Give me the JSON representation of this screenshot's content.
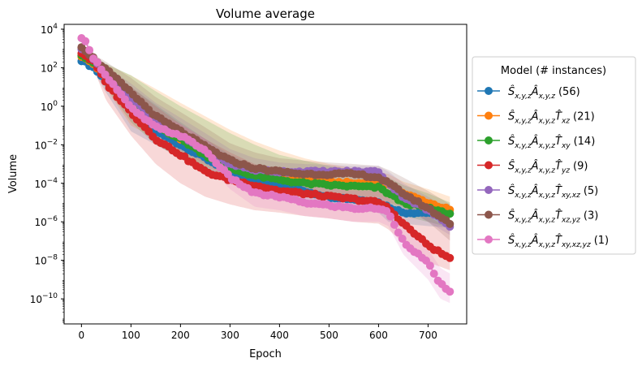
{
  "chart_data": {
    "type": "line",
    "title": "Volume average",
    "xlabel": "Epoch",
    "ylabel": "Volume",
    "yscale": "log",
    "xlim": [
      -35,
      778
    ],
    "ylim_log10": [
      -11.3,
      4.25
    ],
    "xticks": [
      0,
      100,
      200,
      300,
      400,
      500,
      600,
      700
    ],
    "xtick_labels": [
      "0",
      "100",
      "200",
      "300",
      "400",
      "500",
      "600",
      "700"
    ],
    "yticks_log10": [
      -10,
      -8,
      -6,
      -4,
      -2,
      0,
      2,
      4
    ],
    "ytick_labels": [
      {
        "base": "10",
        "exp": "−10"
      },
      {
        "base": "10",
        "exp": "−8"
      },
      {
        "base": "10",
        "exp": "−6"
      },
      {
        "base": "10",
        "exp": "−4"
      },
      {
        "base": "10",
        "exp": "−2"
      },
      {
        "base": "10",
        "exp": "0"
      },
      {
        "base": "10",
        "exp": "2"
      },
      {
        "base": "10",
        "exp": "4"
      }
    ],
    "grid": false,
    "legend_position": "right, outside",
    "legend": {
      "title": "Model (# instances)",
      "entries": [
        {
          "label": "Ŝx,y,zÂx,y,z (56)",
          "parts": [
            [
              "Ŝ",
              "x,y,z"
            ],
            [
              "Â",
              "x,y,z"
            ]
          ],
          "count": "(56)"
        },
        {
          "label": "Ŝx,y,zÂx,y,zT̂xz (21)",
          "parts": [
            [
              "Ŝ",
              "x,y,z"
            ],
            [
              "Â",
              "x,y,z"
            ],
            [
              "T̂",
              "xz"
            ]
          ],
          "count": "(21)"
        },
        {
          "label": "Ŝx,y,zÂx,y,zT̂xy (14)",
          "parts": [
            [
              "Ŝ",
              "x,y,z"
            ],
            [
              "Â",
              "x,y,z"
            ],
            [
              "T̂",
              "xy"
            ]
          ],
          "count": "(14)"
        },
        {
          "label": "Ŝx,y,zÂx,y,zT̂yz (9)",
          "parts": [
            [
              "Ŝ",
              "x,y,z"
            ],
            [
              "Â",
              "x,y,z"
            ],
            [
              "T̂",
              "yz"
            ]
          ],
          "count": "(9)"
        },
        {
          "label": "Ŝx,y,zÂx,y,zT̂xy,xz (5)",
          "parts": [
            [
              "Ŝ",
              "x,y,z"
            ],
            [
              "Â",
              "x,y,z"
            ],
            [
              "T̂",
              "xy,xz"
            ]
          ],
          "count": "(5)"
        },
        {
          "label": "Ŝx,y,zÂx,y,zT̂xz,yz (3)",
          "parts": [
            [
              "Ŝ",
              "x,y,z"
            ],
            [
              "Â",
              "x,y,z"
            ],
            [
              "T̂",
              "xz,yz"
            ]
          ],
          "count": "(3)"
        },
        {
          "label": "Ŝx,y,zÂx,y,zT̂xy,xz,yz (1)",
          "parts": [
            [
              "Ŝ",
              "x,y,z"
            ],
            [
              "Â",
              "x,y,z"
            ],
            [
              "T̂",
              "xy,xz,yz"
            ]
          ],
          "count": "(1)"
        }
      ]
    },
    "series": [
      {
        "name": "Ŝx,y,zÂx,y,z (56)",
        "color": "#1f77b4",
        "x": [
          0,
          25,
          50,
          100,
          150,
          200,
          250,
          300,
          350,
          400,
          450,
          500,
          550,
          600,
          620,
          650,
          700,
          745
        ],
        "y": [
          250,
          100,
          20,
          0.8,
          0.05,
          0.01,
          0.002,
          0.0004,
          0.00015,
          7e-05,
          4e-05,
          2e-05,
          1.5e-05,
          1e-05,
          6e-06,
          3e-06,
          3e-06,
          2.5e-06
        ],
        "band_upper": [
          300,
          150,
          60,
          10,
          1.2,
          0.15,
          0.02,
          0.003,
          0.0008,
          0.0003,
          0.00015,
          0.0001,
          6e-05,
          5e-05,
          3e-05,
          2e-05,
          1e-05,
          8e-06
        ],
        "band_lower": [
          200,
          60,
          5,
          0.05,
          0.01,
          0.002,
          0.0004,
          0.0001,
          4e-05,
          2e-05,
          1e-05,
          5e-06,
          4e-06,
          3e-06,
          1e-06,
          8e-07,
          6e-07,
          5e-07
        ]
      },
      {
        "name": "Ŝx,y,zÂx,y,zT̂xz (21)",
        "color": "#ff7f0e",
        "x": [
          0,
          25,
          50,
          100,
          150,
          200,
          250,
          300,
          350,
          400,
          450,
          500,
          550,
          600,
          620,
          650,
          700,
          745
        ],
        "y": [
          400,
          150,
          30,
          1,
          0.1,
          0.02,
          0.004,
          0.0008,
          0.0003,
          0.0002,
          0.00015,
          0.00012,
          0.0001,
          0.0001,
          8e-05,
          3e-05,
          1e-05,
          4e-06
        ],
        "band_upper": [
          500,
          300,
          150,
          40,
          8,
          1.5,
          0.3,
          0.06,
          0.015,
          0.005,
          0.002,
          0.001,
          0.0006,
          0.0004,
          0.0003,
          0.00012,
          5e-05,
          2e-05
        ],
        "band_lower": [
          300,
          80,
          8,
          0.1,
          0.02,
          0.004,
          0.0008,
          0.0002,
          8e-05,
          5e-05,
          4e-05,
          3e-05,
          2e-05,
          2e-05,
          1e-05,
          6e-06,
          3e-06,
          1e-06
        ]
      },
      {
        "name": "Ŝx,y,zÂx,y,zT̂xy (14)",
        "color": "#2ca02c",
        "x": [
          0,
          25,
          50,
          100,
          150,
          200,
          250,
          300,
          350,
          400,
          450,
          500,
          550,
          600,
          620,
          650,
          700,
          745
        ],
        "y": [
          500,
          180,
          40,
          1.5,
          0.1,
          0.02,
          0.003,
          0.0006,
          0.00025,
          0.00015,
          0.0001,
          8e-05,
          7e-05,
          6e-05,
          3e-05,
          1e-05,
          5e-06,
          2.5e-06
        ],
        "band_upper": [
          600,
          350,
          160,
          40,
          6,
          1,
          0.2,
          0.04,
          0.01,
          0.003,
          0.0015,
          0.0008,
          0.0005,
          0.0003,
          0.0002,
          8e-05,
          3e-05,
          1e-05
        ],
        "band_lower": [
          350,
          90,
          10,
          0.15,
          0.01,
          0.002,
          0.0004,
          0.0001,
          5e-05,
          3e-05,
          2e-05,
          2e-05,
          1e-05,
          1e-05,
          5e-06,
          2e-06,
          1e-06,
          5e-07
        ]
      },
      {
        "name": "Ŝx,y,zÂx,y,zT̂yz (9)",
        "color": "#d62728",
        "x": [
          0,
          25,
          50,
          100,
          150,
          200,
          250,
          300,
          350,
          400,
          450,
          500,
          550,
          600,
          620,
          650,
          700,
          745
        ],
        "y": [
          600,
          200,
          15,
          0.5,
          0.02,
          0.003,
          0.0004,
          0.00015,
          8e-05,
          4e-05,
          3e-05,
          2e-05,
          1.5e-05,
          1e-05,
          5e-06,
          8e-07,
          6e-08,
          1.2e-08
        ],
        "band_upper": [
          700,
          350,
          80,
          10,
          1,
          0.12,
          0.02,
          0.004,
          0.001,
          0.0004,
          0.0002,
          0.0001,
          8e-05,
          5e-05,
          3e-05,
          1e-05,
          2e-06,
          4e-07
        ],
        "band_lower": [
          450,
          80,
          2,
          0.03,
          0.001,
          0.0001,
          2e-05,
          8e-06,
          4e-06,
          3e-06,
          2e-06,
          1.5e-06,
          1e-06,
          8e-07,
          4e-07,
          8e-08,
          8e-09,
          3e-09
        ]
      },
      {
        "name": "Ŝx,y,zÂx,y,zT̂xy,xz (5)",
        "color": "#9467bd",
        "x": [
          0,
          25,
          50,
          100,
          150,
          200,
          250,
          300,
          350,
          400,
          450,
          500,
          550,
          600,
          620,
          650,
          700,
          745
        ],
        "y": [
          1000,
          300,
          50,
          3,
          0.2,
          0.03,
          0.005,
          0.001,
          0.0005,
          0.0004,
          0.0004,
          0.0004,
          0.0004,
          0.0004,
          0.0001,
          2e-05,
          4e-06,
          6e-07
        ],
        "band_upper": [
          1300,
          500,
          120,
          15,
          1.5,
          0.25,
          0.04,
          0.006,
          0.002,
          0.0012,
          0.001,
          0.0009,
          0.0008,
          0.0008,
          0.0004,
          0.0001,
          2e-05,
          4e-06
        ],
        "band_lower": [
          700,
          150,
          15,
          0.5,
          0.03,
          0.005,
          0.001,
          0.0003,
          0.00015,
          0.00012,
          0.00012,
          0.00012,
          0.00012,
          0.0001,
          3e-05,
          5e-06,
          1e-06,
          2e-07
        ]
      },
      {
        "name": "Ŝx,y,zÂx,y,zT̂xz,yz (3)",
        "color": "#8c564b",
        "x": [
          0,
          25,
          50,
          100,
          150,
          200,
          250,
          300,
          350,
          400,
          450,
          500,
          550,
          600,
          620,
          650,
          700,
          745
        ],
        "y": [
          1300,
          300,
          80,
          5,
          0.3,
          0.05,
          0.008,
          0.0015,
          0.0006,
          0.0004,
          0.0003,
          0.0003,
          0.0003,
          0.0002,
          0.0001,
          3e-05,
          5e-06,
          8e-07
        ],
        "band_upper": [
          1600,
          500,
          200,
          30,
          3,
          0.5,
          0.08,
          0.012,
          0.004,
          0.002,
          0.0015,
          0.0012,
          0.001,
          0.0008,
          0.0005,
          0.0002,
          4e-05,
          8e-06
        ],
        "band_lower": [
          900,
          150,
          20,
          0.5,
          0.05,
          0.008,
          0.0015,
          0.0004,
          0.00015,
          0.0001,
          0.0001,
          0.0001,
          0.0001,
          5e-05,
          2e-05,
          6e-06,
          1e-06,
          1e-07
        ]
      },
      {
        "name": "Ŝx,y,zÂx,y,zT̂xy,xz,yz (1)",
        "color": "#e377c2",
        "x": [
          0,
          10,
          25,
          50,
          100,
          150,
          200,
          250,
          300,
          350,
          400,
          450,
          500,
          550,
          600,
          620,
          650,
          700,
          725,
          745
        ],
        "y": [
          3000,
          2000,
          300,
          40,
          0.8,
          0.08,
          0.03,
          0.005,
          0.0002,
          3e-05,
          2e-05,
          1e-05,
          7e-06,
          5e-06,
          5e-06,
          3e-06,
          1e-07,
          7e-09,
          6e-10,
          2e-10
        ],
        "band_upper": [
          4000,
          2800,
          600,
          120,
          4,
          0.4,
          0.12,
          0.02,
          0.002,
          0.0003,
          0.0002,
          0.0001,
          6e-05,
          4e-05,
          4e-05,
          2e-05,
          6e-07,
          4e-08,
          4e-09,
          2e-09
        ],
        "band_lower": [
          2200,
          1400,
          150,
          15,
          0.2,
          0.02,
          0.008,
          0.0012,
          5e-05,
          6e-06,
          4e-06,
          2e-06,
          1.5e-06,
          1e-06,
          1e-06,
          6e-07,
          2e-08,
          1e-09,
          1e-10,
          6e-11
        ]
      }
    ]
  }
}
